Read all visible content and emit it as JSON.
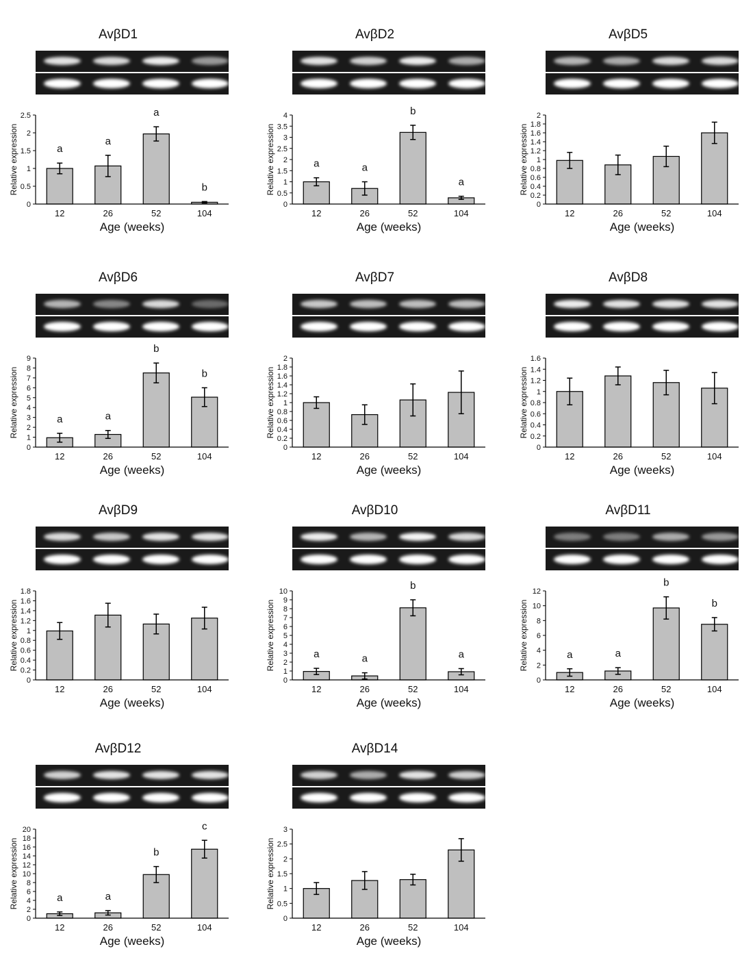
{
  "figure": {
    "panels": [
      {
        "title": "AvβD1",
        "gel": {
          "target_band_intensity": [
            0.85,
            0.8,
            0.9,
            0.45
          ],
          "control_band_intensity": [
            1,
            1,
            1,
            1
          ]
        },
        "chart_data": {
          "type": "bar",
          "categories": [
            "12",
            "26",
            "52",
            "104"
          ],
          "values": [
            1.0,
            1.07,
            1.97,
            0.05
          ],
          "errors": [
            0.15,
            0.3,
            0.2,
            0.02
          ],
          "significance": [
            "a",
            "a",
            "a",
            "b"
          ],
          "xlabel": "Age (weeks)",
          "ylabel": "Relative expression",
          "ylim": [
            0,
            2.5
          ],
          "yticks": [
            "0",
            "0.5",
            "1",
            "1.5",
            "2",
            "2.5"
          ]
        }
      },
      {
        "title": "AvβD2",
        "gel": {
          "target_band_intensity": [
            0.85,
            0.75,
            0.9,
            0.55
          ],
          "control_band_intensity": [
            1,
            1,
            1,
            1
          ]
        },
        "chart_data": {
          "type": "bar",
          "categories": [
            "12",
            "26",
            "52",
            "104"
          ],
          "values": [
            1.0,
            0.7,
            3.22,
            0.28
          ],
          "errors": [
            0.18,
            0.3,
            0.32,
            0.07
          ],
          "significance": [
            "a",
            "a",
            "b",
            "a"
          ],
          "xlabel": "Age (weeks)",
          "ylabel": "Relative expression",
          "ylim": [
            0,
            4
          ],
          "yticks": [
            "0",
            "0.5",
            "1",
            "1.5",
            "2",
            "2.5",
            "3",
            "3.5",
            "4"
          ]
        }
      },
      {
        "title": "AvβD5",
        "gel": {
          "target_band_intensity": [
            0.6,
            0.55,
            0.8,
            0.8
          ],
          "control_band_intensity": [
            1,
            1,
            1,
            1
          ]
        },
        "chart_data": {
          "type": "bar",
          "categories": [
            "12",
            "26",
            "52",
            "104"
          ],
          "values": [
            0.98,
            0.88,
            1.07,
            1.6
          ],
          "errors": [
            0.18,
            0.22,
            0.23,
            0.24
          ],
          "significance": [
            "",
            "",
            "",
            ""
          ],
          "xlabel": "Age (weeks)",
          "ylabel": "Relative expression",
          "ylim": [
            0,
            2
          ],
          "yticks": [
            "0",
            "0.2",
            "0.4",
            "0.6",
            "0.8",
            "1",
            "1.2",
            "1.4",
            "1.6",
            "1.8",
            "2"
          ]
        }
      },
      {
        "title": "AvβD6",
        "gel": {
          "target_band_intensity": [
            0.6,
            0.35,
            0.8,
            0.2
          ],
          "control_band_intensity": [
            1,
            1,
            1,
            1
          ]
        },
        "chart_data": {
          "type": "bar",
          "categories": [
            "12",
            "26",
            "52",
            "104"
          ],
          "values": [
            0.95,
            1.28,
            7.5,
            5.05
          ],
          "errors": [
            0.45,
            0.4,
            1.0,
            0.95
          ],
          "significance": [
            "a",
            "a",
            "b",
            "b"
          ],
          "xlabel": "Age (weeks)",
          "ylabel": "Relative expression",
          "ylim": [
            0,
            9
          ],
          "yticks": [
            "0",
            "1",
            "2",
            "3",
            "4",
            "5",
            "6",
            "7",
            "8",
            "9"
          ]
        }
      },
      {
        "title": "AvβD7",
        "gel": {
          "target_band_intensity": [
            0.7,
            0.65,
            0.65,
            0.65
          ],
          "control_band_intensity": [
            1,
            1,
            1,
            1
          ]
        },
        "chart_data": {
          "type": "bar",
          "categories": [
            "12",
            "26",
            "52",
            "104"
          ],
          "values": [
            1.0,
            0.73,
            1.06,
            1.23
          ],
          "errors": [
            0.13,
            0.22,
            0.36,
            0.48
          ],
          "significance": [
            "",
            "",
            "",
            ""
          ],
          "xlabel": "Age (weeks)",
          "ylabel": "Relative expression",
          "ylim": [
            0,
            2
          ],
          "yticks": [
            "0",
            "0.2",
            "0.4",
            "0.6",
            "0.8",
            "1",
            "1.2",
            "1.4",
            "1.6",
            "1.8",
            "2"
          ]
        }
      },
      {
        "title": "AvβD8",
        "gel": {
          "target_band_intensity": [
            0.9,
            0.85,
            0.85,
            0.85
          ],
          "control_band_intensity": [
            1,
            1,
            1,
            1
          ]
        },
        "chart_data": {
          "type": "bar",
          "categories": [
            "12",
            "26",
            "52",
            "104"
          ],
          "values": [
            1.0,
            1.28,
            1.16,
            1.06
          ],
          "errors": [
            0.24,
            0.16,
            0.22,
            0.28
          ],
          "significance": [
            "",
            "",
            "",
            ""
          ],
          "xlabel": "Age (weeks)",
          "ylabel": "Relative expression",
          "ylim": [
            0,
            1.6
          ],
          "yticks": [
            "0",
            "0.2",
            "0.4",
            "0.6",
            "0.8",
            "1",
            "1.2",
            "1.4",
            "1.6"
          ]
        }
      },
      {
        "title": "AvβD9",
        "gel": {
          "target_band_intensity": [
            0.8,
            0.7,
            0.85,
            0.85
          ],
          "control_band_intensity": [
            1,
            1,
            1,
            1
          ]
        },
        "chart_data": {
          "type": "bar",
          "categories": [
            "12",
            "26",
            "52",
            "104"
          ],
          "values": [
            0.99,
            1.31,
            1.13,
            1.25
          ],
          "errors": [
            0.17,
            0.24,
            0.2,
            0.22
          ],
          "significance": [
            "",
            "",
            "",
            ""
          ],
          "xlabel": "Age (weeks)",
          "ylabel": "Relative expression",
          "ylim": [
            0,
            1.8
          ],
          "yticks": [
            "0",
            "0.2",
            "0.4",
            "0.6",
            "0.8",
            "1",
            "1.2",
            "1.4",
            "1.6",
            "1.8"
          ]
        }
      },
      {
        "title": "AvβD10",
        "gel": {
          "target_band_intensity": [
            0.9,
            0.6,
            0.95,
            0.8
          ],
          "control_band_intensity": [
            1,
            1,
            1,
            1
          ]
        },
        "chart_data": {
          "type": "bar",
          "categories": [
            "12",
            "26",
            "52",
            "104"
          ],
          "values": [
            0.95,
            0.45,
            8.1,
            0.92
          ],
          "errors": [
            0.35,
            0.35,
            0.9,
            0.35
          ],
          "significance": [
            "a",
            "a",
            "b",
            "a"
          ],
          "xlabel": "Age (weeks)",
          "ylabel": "Relative expression",
          "ylim": [
            0,
            10
          ],
          "yticks": [
            "0",
            "1",
            "2",
            "3",
            "4",
            "5",
            "6",
            "7",
            "8",
            "9",
            "10"
          ]
        }
      },
      {
        "title": "AvβD11",
        "gel": {
          "target_band_intensity": [
            0.3,
            0.3,
            0.55,
            0.45
          ],
          "control_band_intensity": [
            1,
            1,
            1,
            1
          ]
        },
        "chart_data": {
          "type": "bar",
          "categories": [
            "12",
            "26",
            "52",
            "104"
          ],
          "values": [
            1.0,
            1.2,
            9.7,
            7.5
          ],
          "errors": [
            0.5,
            0.45,
            1.5,
            0.9
          ],
          "significance": [
            "a",
            "a",
            "b",
            "b"
          ],
          "xlabel": "Age (weeks)",
          "ylabel": "Relative expression",
          "ylim": [
            0,
            12
          ],
          "yticks": [
            "0",
            "2",
            "4",
            "6",
            "8",
            "10",
            "12"
          ]
        }
      },
      {
        "title": "AvβD12",
        "gel": {
          "target_band_intensity": [
            0.75,
            0.85,
            0.85,
            0.85
          ],
          "control_band_intensity": [
            1,
            1,
            1,
            1
          ]
        },
        "chart_data": {
          "type": "bar",
          "categories": [
            "12",
            "26",
            "52",
            "104"
          ],
          "values": [
            1.0,
            1.2,
            9.8,
            15.5
          ],
          "errors": [
            0.4,
            0.5,
            1.8,
            2.0
          ],
          "significance": [
            "a",
            "a",
            "b",
            "c"
          ],
          "xlabel": "Age (weeks)",
          "ylabel": "Relative expression",
          "ylim": [
            0,
            20
          ],
          "yticks": [
            "0",
            "2",
            "4",
            "6",
            "8",
            "10",
            "12",
            "14",
            "16",
            "18",
            "20"
          ]
        }
      },
      {
        "title": "AvβD14",
        "gel": {
          "target_band_intensity": [
            0.75,
            0.55,
            0.85,
            0.75
          ],
          "control_band_intensity": [
            1,
            1,
            1,
            1
          ]
        },
        "chart_data": {
          "type": "bar",
          "categories": [
            "12",
            "26",
            "52",
            "104"
          ],
          "values": [
            1.0,
            1.27,
            1.3,
            2.3
          ],
          "errors": [
            0.2,
            0.3,
            0.18,
            0.38
          ],
          "significance": [
            "",
            "",
            "",
            ""
          ],
          "xlabel": "Age (weeks)",
          "ylabel": "Relative expression",
          "ylim": [
            0,
            3
          ],
          "yticks": [
            "0",
            "0.5",
            "1",
            "1.5",
            "2",
            "2.5",
            "3"
          ]
        }
      }
    ]
  }
}
